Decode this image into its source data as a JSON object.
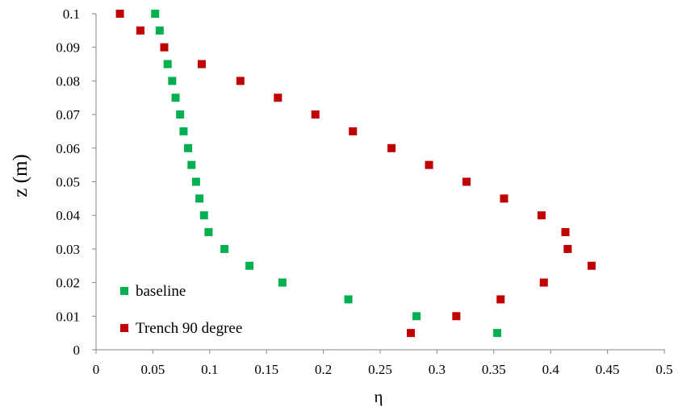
{
  "chart_data": {
    "type": "scatter",
    "xlabel": "η",
    "ylabel": "z (m)",
    "xlim": [
      0,
      0.5
    ],
    "ylim": [
      0,
      0.1
    ],
    "xticks": [
      "0",
      "0.05",
      "0.1",
      "0.15",
      "0.2",
      "0.25",
      "0.3",
      "0.35",
      "0.4",
      "0.45",
      "0.5"
    ],
    "yticks": [
      "0",
      "0.01",
      "0.02",
      "0.03",
      "0.04",
      "0.05",
      "0.06",
      "0.07",
      "0.08",
      "0.09",
      "0.1"
    ],
    "grid": false,
    "legend": "bottom-left",
    "series": [
      {
        "name": "baseline",
        "color": "#00b050",
        "marker": "square",
        "points": [
          [
            0.052,
            0.1
          ],
          [
            0.056,
            0.095
          ],
          [
            0.063,
            0.085
          ],
          [
            0.067,
            0.08
          ],
          [
            0.07,
            0.075
          ],
          [
            0.074,
            0.07
          ],
          [
            0.077,
            0.065
          ],
          [
            0.081,
            0.06
          ],
          [
            0.084,
            0.055
          ],
          [
            0.088,
            0.05
          ],
          [
            0.091,
            0.045
          ],
          [
            0.095,
            0.04
          ],
          [
            0.099,
            0.035
          ],
          [
            0.113,
            0.03
          ],
          [
            0.135,
            0.025
          ],
          [
            0.164,
            0.02
          ],
          [
            0.222,
            0.015
          ],
          [
            0.282,
            0.01
          ],
          [
            0.353,
            0.005
          ]
        ]
      },
      {
        "name": "Trench 90 degree",
        "color": "#c00000",
        "marker": "square",
        "points": [
          [
            0.021,
            0.1
          ],
          [
            0.039,
            0.095
          ],
          [
            0.06,
            0.09
          ],
          [
            0.093,
            0.085
          ],
          [
            0.127,
            0.08
          ],
          [
            0.16,
            0.075
          ],
          [
            0.193,
            0.07
          ],
          [
            0.226,
            0.065
          ],
          [
            0.26,
            0.06
          ],
          [
            0.293,
            0.055
          ],
          [
            0.326,
            0.05
          ],
          [
            0.359,
            0.045
          ],
          [
            0.392,
            0.04
          ],
          [
            0.413,
            0.035
          ],
          [
            0.415,
            0.03
          ],
          [
            0.436,
            0.025
          ],
          [
            0.394,
            0.02
          ],
          [
            0.356,
            0.015
          ],
          [
            0.317,
            0.01
          ],
          [
            0.277,
            0.005
          ]
        ]
      }
    ]
  }
}
